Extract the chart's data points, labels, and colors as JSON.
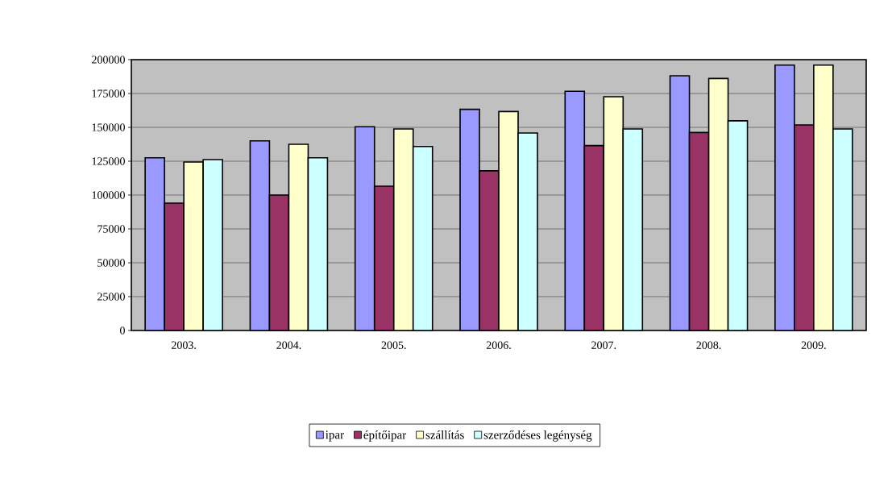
{
  "chart_data": {
    "type": "bar",
    "categories": [
      "2003.",
      "2004.",
      "2005.",
      "2006.",
      "2007.",
      "2008.",
      "2009."
    ],
    "series": [
      {
        "name": "ipar",
        "color": "#9999ff",
        "values": [
          127500,
          140000,
          150400,
          163300,
          176600,
          188100,
          196000
        ]
      },
      {
        "name": "építőipar",
        "color": "#993366",
        "values": [
          94000,
          100000,
          106500,
          117900,
          136500,
          146200,
          151800
        ]
      },
      {
        "name": "szállítás",
        "color": "#ffffcc",
        "values": [
          124400,
          137500,
          148800,
          161700,
          172600,
          186100,
          196000
        ]
      },
      {
        "name": "szerződéses legénység",
        "color": "#ccffff",
        "values": [
          126200,
          127500,
          135900,
          145800,
          148800,
          154800,
          148800
        ]
      }
    ],
    "ylim": [
      0,
      200000
    ],
    "yticks": [
      0,
      25000,
      50000,
      75000,
      100000,
      125000,
      150000,
      175000,
      200000
    ],
    "grid": "y",
    "legend": "bottom"
  }
}
